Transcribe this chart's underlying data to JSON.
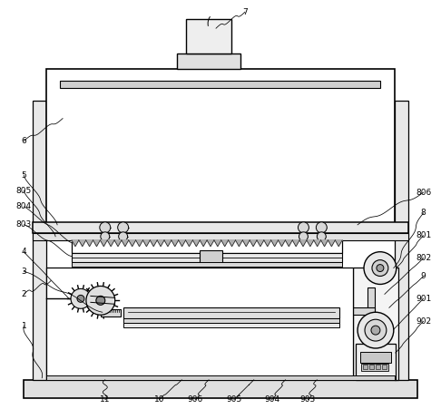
{
  "bg_color": "#ffffff",
  "line_color": "#000000",
  "gray_fill": "#e8e8e8",
  "dark_gray": "#c8c8c8",
  "light_gray": "#f0f0f0",
  "mid_gray": "#d4d4d4"
}
